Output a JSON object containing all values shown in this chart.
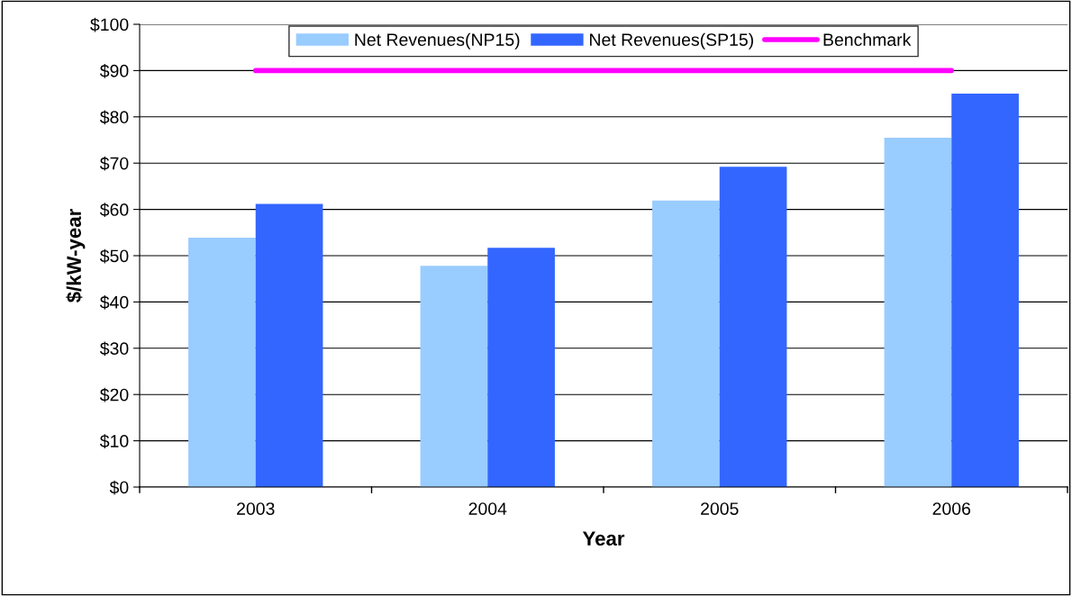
{
  "chart_data": {
    "type": "bar",
    "xlabel": "Year",
    "ylabel": "$/kW-year",
    "categories": [
      "2003",
      "2004",
      "2005",
      "2006"
    ],
    "series": [
      {
        "name": "Net Revenues(NP15)",
        "color": "#99ccff",
        "values": [
          53.9,
          47.8,
          61.9,
          75.5
        ]
      },
      {
        "name": "Net Revenues(SP15)",
        "color": "#3366ff",
        "values": [
          61.2,
          51.7,
          69.2,
          85.0
        ]
      },
      {
        "name": "Benchmark",
        "type": "line",
        "color": "#ff00ff",
        "values": [
          90,
          90,
          90,
          90
        ]
      }
    ],
    "ylim": [
      0,
      100
    ],
    "yticks": [
      {
        "value": 0,
        "label": "$0"
      },
      {
        "value": 10,
        "label": "$10"
      },
      {
        "value": 20,
        "label": "$20"
      },
      {
        "value": 30,
        "label": "$30"
      },
      {
        "value": 40,
        "label": "$40"
      },
      {
        "value": 50,
        "label": "$50"
      },
      {
        "value": 60,
        "label": "$60"
      },
      {
        "value": 70,
        "label": "$70"
      },
      {
        "value": 80,
        "label": "$80"
      },
      {
        "value": 90,
        "label": "$90"
      },
      {
        "value": 100,
        "label": "$100"
      }
    ],
    "grid": "y",
    "legend": "top"
  }
}
